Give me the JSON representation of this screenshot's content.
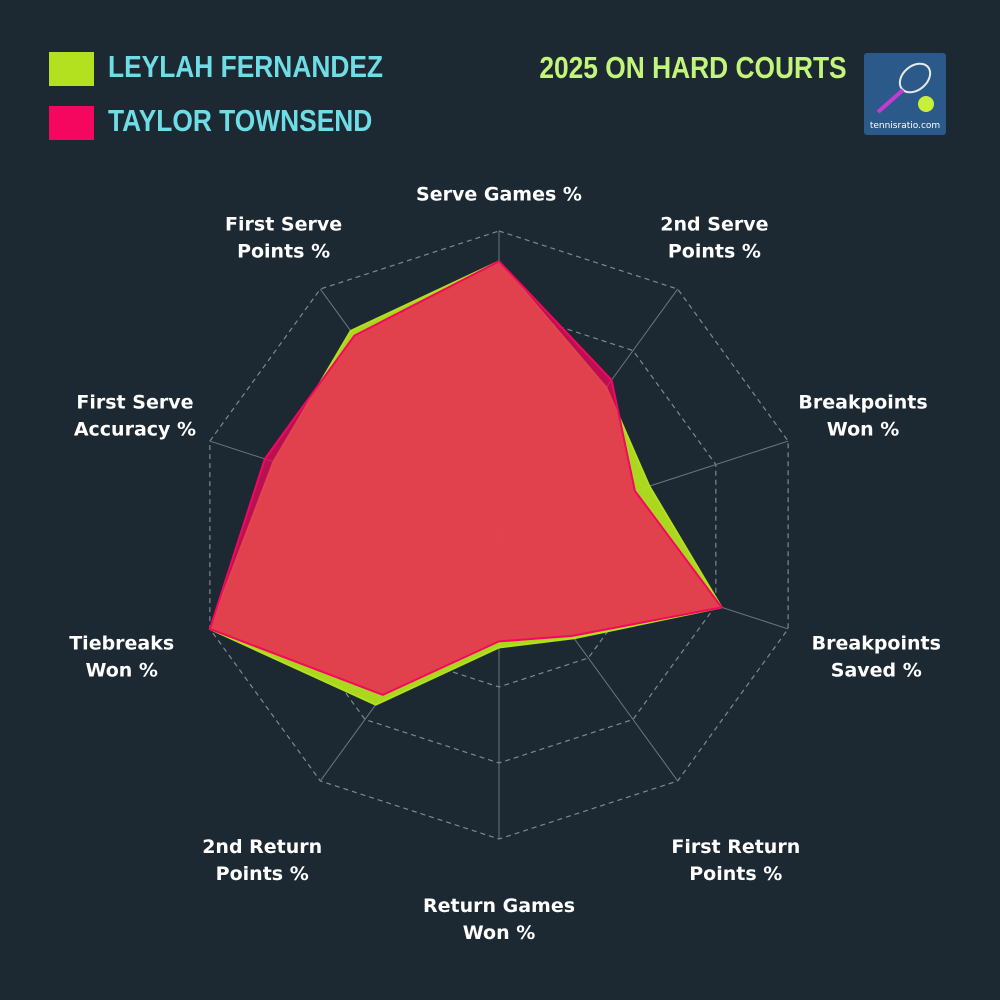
{
  "chart_data": {
    "type": "radar",
    "title": "2025 ON HARD COURTS",
    "logo_text": "tennisratio.com",
    "categories": [
      [
        "Serve Games %"
      ],
      [
        "2nd Serve",
        "Points %"
      ],
      [
        "Breakpoints",
        "Won %"
      ],
      [
        "Breakpoints",
        "Saved %"
      ],
      [
        "First Return",
        "Points %"
      ],
      [
        "Return Games",
        "Won %"
      ],
      [
        "2nd Return",
        "Points %"
      ],
      [
        "Tiebreaks",
        "Won %"
      ],
      [
        "First Serve",
        "Accuracy %"
      ],
      [
        "First Serve",
        "Points %"
      ]
    ],
    "rlim": [
      0,
      100
    ],
    "rticks": [
      25,
      50,
      75,
      100
    ],
    "grid": true,
    "series": [
      {
        "name": "LEYLAH FERNANDEZ",
        "color": "#b3e01f",
        "values": [
          90,
          60,
          52,
          77,
          42,
          37,
          69,
          100,
          78,
          83
        ]
      },
      {
        "name": "TAYLOR TOWNSEND",
        "color": "#f5075f",
        "values": [
          90,
          63,
          47,
          77,
          41,
          35,
          65,
          100,
          81,
          81
        ]
      }
    ]
  }
}
